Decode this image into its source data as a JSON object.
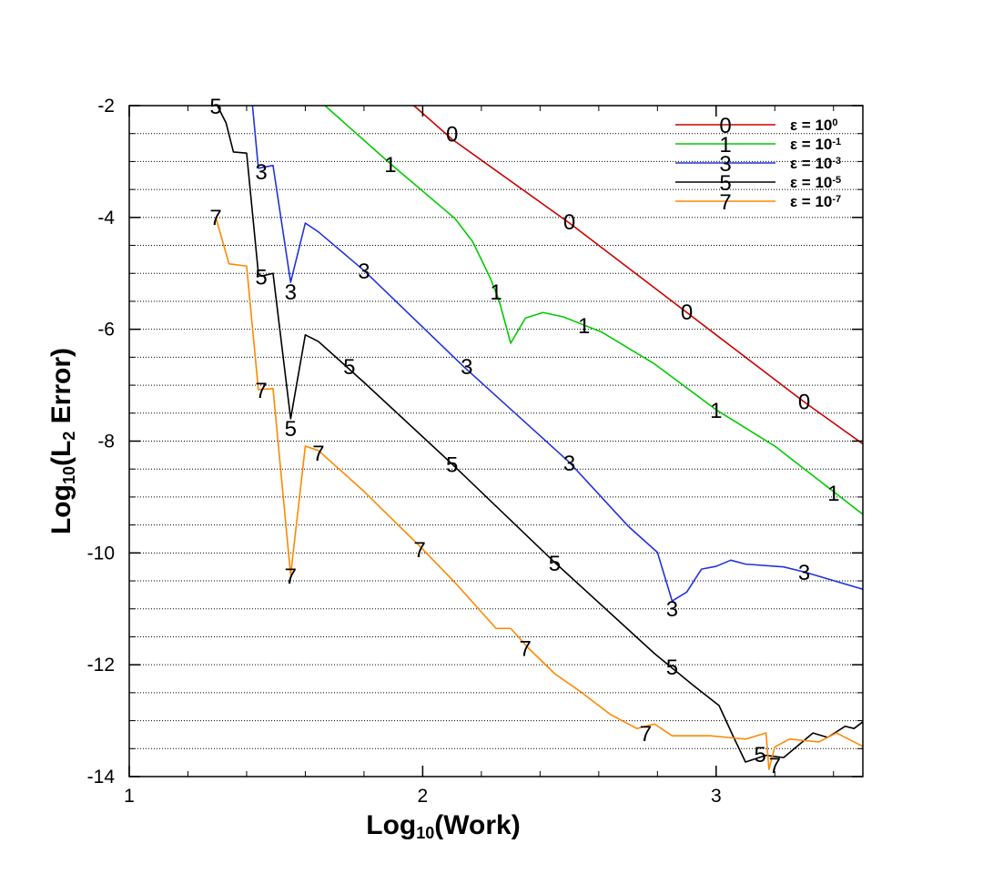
{
  "chart_data": {
    "type": "line",
    "x_label": [
      {
        "text": "Log"
      },
      {
        "text": "10",
        "sub": true
      },
      {
        "text": "(Work)"
      }
    ],
    "y_label": [
      {
        "text": "Log"
      },
      {
        "text": "10",
        "sub": true
      },
      {
        "text": "(L"
      },
      {
        "text": "2",
        "sub": true
      },
      {
        "text": " Error)"
      }
    ],
    "xlim": [
      1,
      3.5
    ],
    "ylim": [
      -14,
      -2
    ],
    "xticks": [
      1,
      2,
      3
    ],
    "yticks": [
      -14,
      -12,
      -10,
      -8,
      -6,
      -4,
      -2
    ],
    "x_minor_ticks": [
      1.2,
      1.4,
      1.6,
      1.8,
      2.2,
      2.4,
      2.6,
      2.8,
      3.2,
      3.4
    ],
    "y_minor_ticks": [
      -13.5,
      -13,
      -12.5,
      -11.5,
      -11,
      -10.5,
      -9.5,
      -9,
      -8.5,
      -7.5,
      -7,
      -6.5,
      -5.5,
      -5,
      -4.5,
      -3.5,
      -3,
      -2.5
    ],
    "grid": true,
    "legend": "upper right",
    "series": [
      {
        "name": "ε = 10",
        "exponent": "0",
        "symbol": "0",
        "color": "#cc0000",
        "x": [
          1.97,
          2.1,
          2.5,
          3.0,
          3.3,
          3.5
        ],
        "values": [
          -2,
          -2.6,
          -4.1,
          -6.1,
          -7.3,
          -8.05
        ],
        "symbol_x": [
          2.1,
          2.5,
          2.9,
          3.3
        ],
        "symbol_y": [
          -2.5,
          -4.07,
          -5.68,
          -7.28
        ]
      },
      {
        "name": "ε = 10",
        "exponent": "-1",
        "symbol": "1",
        "color": "#00cc00",
        "x": [
          1.667,
          1.89,
          2.11,
          2.17,
          2.23,
          2.26,
          2.3,
          2.35,
          2.41,
          2.48,
          2.61,
          2.79,
          3.0,
          3.2,
          3.5
        ],
        "values": [
          -2,
          -3.04,
          -4.02,
          -4.43,
          -5.08,
          -5.48,
          -6.25,
          -5.8,
          -5.7,
          -5.78,
          -6.05,
          -6.62,
          -7.44,
          -8.09,
          -9.31
        ],
        "symbol_x": [
          1.89,
          2.25,
          2.55,
          3.0,
          3.4
        ],
        "symbol_y": [
          -3.04,
          -5.32,
          -5.92,
          -7.44,
          -8.92
        ]
      },
      {
        "name": "ε = 10",
        "exponent": "-3",
        "symbol": "3",
        "color": "#2233dd",
        "x": [
          1.42,
          1.44,
          1.49,
          1.55,
          1.6,
          1.645,
          1.8,
          2.14,
          2.5,
          2.7,
          2.8,
          2.85,
          2.9,
          2.95,
          3.0,
          3.05,
          3.1,
          3.23,
          3.3,
          3.5
        ],
        "values": [
          -2,
          -3.12,
          -3.07,
          -5.16,
          -4.1,
          -4.26,
          -4.95,
          -6.67,
          -8.38,
          -9.52,
          -9.99,
          -10.86,
          -10.7,
          -10.29,
          -10.24,
          -10.13,
          -10.2,
          -10.25,
          -10.34,
          -10.65
        ],
        "symbol_x": [
          1.45,
          1.55,
          1.8,
          2.15,
          2.5,
          2.85,
          3.3
        ],
        "symbol_y": [
          -3.17,
          -5.32,
          -4.95,
          -6.66,
          -8.38,
          -10.99,
          -10.34
        ]
      },
      {
        "name": "ε = 10",
        "exponent": "-5",
        "symbol": "5",
        "color": "#000000",
        "x": [
          1.3,
          1.33,
          1.355,
          1.4,
          1.44,
          1.45,
          1.49,
          1.55,
          1.6,
          1.645,
          1.8,
          2.1,
          2.45,
          2.79,
          2.92,
          3.01,
          3.06,
          3.1,
          3.17,
          3.23,
          3.33,
          3.38,
          3.44,
          3.47,
          3.5
        ],
        "values": [
          -2,
          -2.31,
          -2.83,
          -2.85,
          -5.0,
          -5.05,
          -5.0,
          -7.6,
          -6.1,
          -6.22,
          -6.95,
          -8.41,
          -10.17,
          -11.8,
          -12.36,
          -12.73,
          -13.3,
          -13.74,
          -13.62,
          -13.66,
          -13.22,
          -13.3,
          -13.1,
          -13.14,
          -13.02
        ],
        "symbol_x": [
          1.295,
          1.45,
          1.55,
          1.75,
          2.1,
          2.45,
          2.85,
          3.15
        ],
        "symbol_y": [
          -2.0,
          -5.05,
          -7.76,
          -6.66,
          -8.41,
          -10.17,
          -12.03,
          -13.59
        ]
      },
      {
        "name": "ε = 10",
        "exponent": "-7",
        "symbol": "7",
        "color": "#ff8800",
        "x": [
          1.295,
          1.34,
          1.4,
          1.44,
          1.49,
          1.55,
          1.6,
          1.645,
          1.8,
          1.99,
          2.11,
          2.25,
          2.3,
          2.36,
          2.45,
          2.54,
          2.64,
          2.73,
          2.79,
          2.85,
          2.98,
          3.04,
          3.1,
          3.17,
          3.18,
          3.2,
          3.25,
          3.35,
          3.41,
          3.5
        ],
        "values": [
          -4.0,
          -4.83,
          -4.87,
          -7.08,
          -7.06,
          -10.4,
          -8.09,
          -8.17,
          -8.9,
          -9.88,
          -10.53,
          -11.35,
          -11.35,
          -11.7,
          -12.16,
          -12.49,
          -12.89,
          -13.14,
          -13.06,
          -13.27,
          -13.27,
          -13.3,
          -13.33,
          -13.22,
          -13.87,
          -13.47,
          -13.33,
          -13.38,
          -13.22,
          -13.46
        ],
        "symbol_x": [
          1.295,
          1.45,
          1.55,
          1.645,
          1.99,
          2.35,
          2.76,
          3.2
        ],
        "symbol_y": [
          -3.99,
          -7.08,
          -10.4,
          -8.2,
          -9.93,
          -11.7,
          -13.22,
          -13.79
        ]
      }
    ]
  }
}
